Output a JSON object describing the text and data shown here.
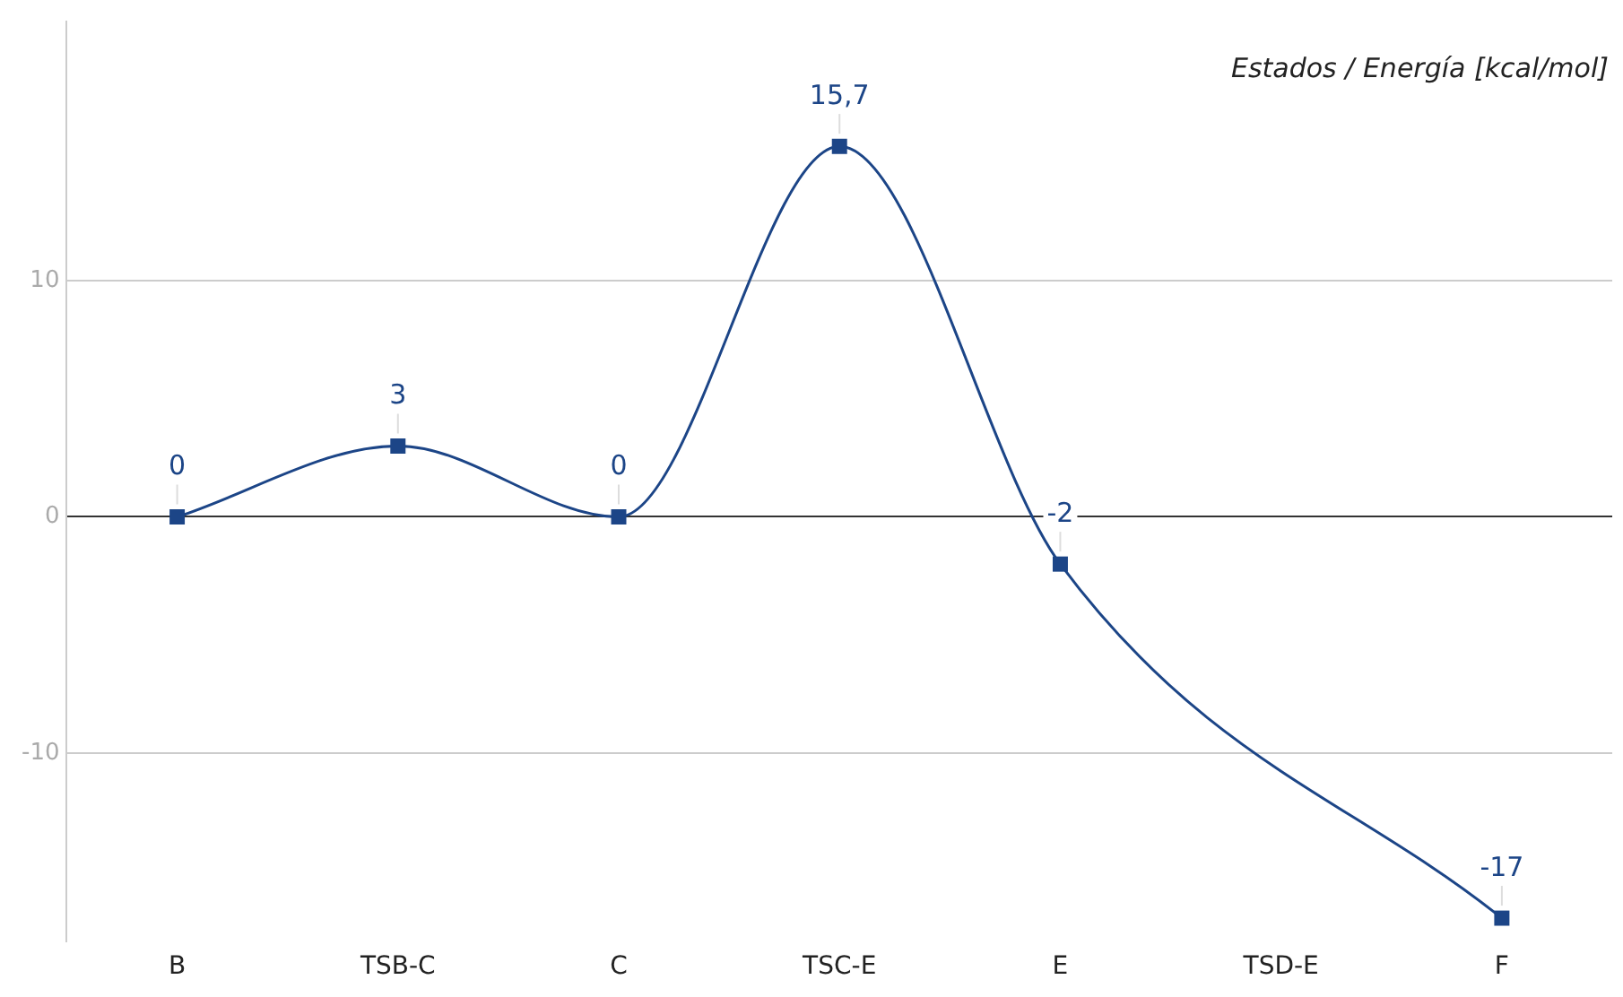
{
  "chart_data": {
    "type": "line",
    "title": "Estados / Energía [kcal/mol]",
    "categories": [
      "B",
      "TSB-C",
      "C",
      "TSC-E",
      "E",
      "TSD-E",
      "F"
    ],
    "series": [
      {
        "color": "#1c4587",
        "values": [
          0,
          3,
          0,
          15.7,
          -2,
          null,
          -17
        ],
        "value_labels": [
          "0",
          "3",
          "0",
          "15,7",
          "-2",
          null,
          "-17"
        ]
      }
    ],
    "ylim": [
      -18,
      21
    ],
    "yticks": [
      -10,
      0,
      10
    ],
    "grid": "y",
    "legend": false,
    "marker": "square",
    "line_style": "solid"
  }
}
